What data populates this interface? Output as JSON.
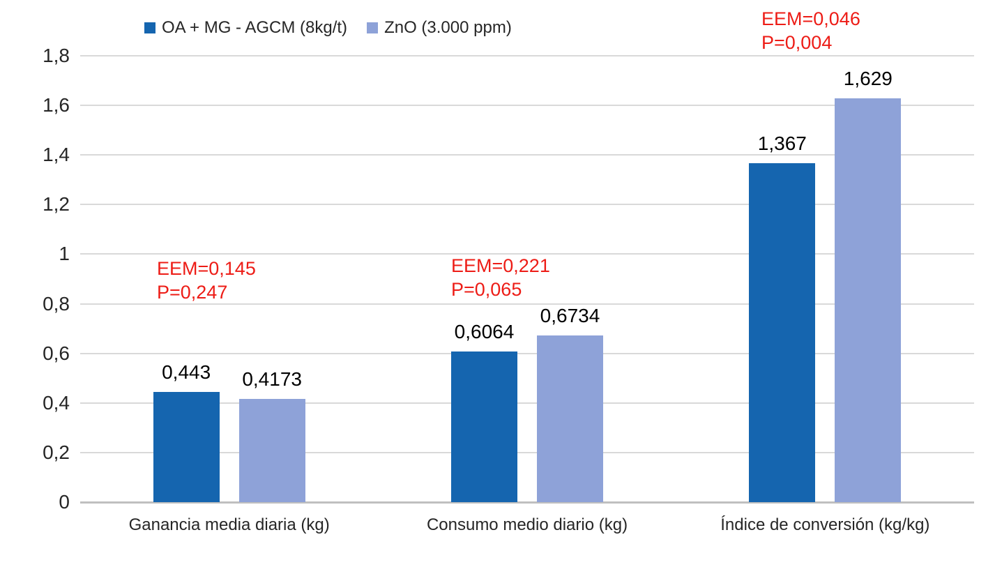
{
  "chart_data": {
    "type": "bar",
    "title": "",
    "categories": [
      "Ganancia media diaria (kg)",
      "Consumo medio diario (kg)",
      "Índice de conversión (kg/kg)"
    ],
    "series": [
      {
        "name": "OA + MG - AGCM (8kg/t)",
        "color": "#1565af",
        "values": [
          0.443,
          0.6064,
          1.367
        ],
        "labels": [
          "0,443",
          "0,6064",
          "1,367"
        ]
      },
      {
        "name": "ZnO (3.000 ppm)",
        "color": "#8ea2d8",
        "values": [
          0.4173,
          0.6734,
          1.629
        ],
        "labels": [
          "0,4173",
          "0,6734",
          "1,629"
        ]
      }
    ],
    "annotations": [
      {
        "lines": [
          "EEM=0,145",
          "P=0,247"
        ]
      },
      {
        "lines": [
          "EEM=0,221",
          "P=0,065"
        ]
      },
      {
        "lines": [
          "EEM=0,046",
          "P=0,004"
        ]
      }
    ],
    "annotation_color": "#ed1c16",
    "xlabel": "",
    "ylabel": "",
    "ylim": [
      0,
      1.8
    ],
    "ytick_step": 0.2,
    "ytick_labels": [
      "0",
      "0,2",
      "0,4",
      "0,6",
      "0,8",
      "1",
      "1,2",
      "1,4",
      "1,6",
      "1,8"
    ],
    "grid": true,
    "gridline_color": "#d9d9d9",
    "axis_line_color": "#bfbfbf",
    "legend_position": "top"
  }
}
